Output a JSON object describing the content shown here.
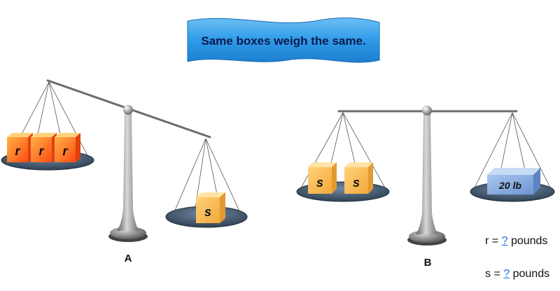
{
  "banner": {
    "text": "Same boxes weigh the same."
  },
  "scale_a": {
    "label": "A",
    "left_boxes": [
      "r",
      "r",
      "r"
    ],
    "right_boxes": [
      "s"
    ]
  },
  "scale_b": {
    "label": "B",
    "left_boxes": [
      "s",
      "s"
    ],
    "right_weight": "20 lb"
  },
  "answers": [
    {
      "variable": "r",
      "equals": "=",
      "blank": "?",
      "unit": "pounds"
    },
    {
      "variable": "s",
      "equals": "=",
      "blank": "?",
      "unit": "pounds"
    }
  ],
  "colors": {
    "banner_fill": "#2f9be8",
    "banner_text": "#0b1a4d",
    "r_box": "#ff6a1a",
    "s_box": "#f7b74e",
    "weight_box": "#7fa6dd",
    "pan": "#3f5166",
    "stand": "#8a8a8a"
  }
}
